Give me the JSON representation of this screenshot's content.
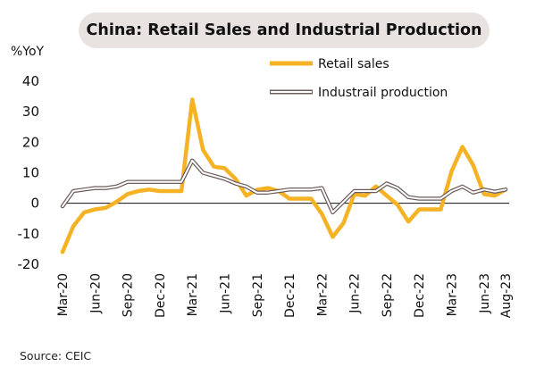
{
  "chart_data": {
    "type": "line",
    "title": "China: Retail Sales and Industrial Production",
    "ylabel": "%YoY",
    "xlabel": "",
    "ylim": [
      -20,
      40
    ],
    "yticks": [
      -20,
      -10,
      0,
      10,
      20,
      30,
      40
    ],
    "x": [
      "Mar-20",
      "Apr-20",
      "May-20",
      "Jun-20",
      "Jul-20",
      "Aug-20",
      "Sep-20",
      "Oct-20",
      "Nov-20",
      "Dec-20",
      "Jan-21",
      "Feb-21",
      "Mar-21",
      "Apr-21",
      "May-21",
      "Jun-21",
      "Jul-21",
      "Aug-21",
      "Sep-21",
      "Oct-21",
      "Nov-21",
      "Dec-21",
      "Jan-22",
      "Feb-22",
      "Mar-22",
      "Apr-22",
      "May-22",
      "Jun-22",
      "Jul-22",
      "Aug-22",
      "Sep-22",
      "Oct-22",
      "Nov-22",
      "Dec-22",
      "Jan-23",
      "Feb-23",
      "Mar-23",
      "Apr-23",
      "May-23",
      "Jun-23",
      "Jul-23",
      "Aug-23"
    ],
    "xtick_labels": [
      "Mar-20",
      "Jun-20",
      "Sep-20",
      "Dec-20",
      "Mar-21",
      "Jun-21",
      "Sep-21",
      "Dec-21",
      "Mar-22",
      "Jun-22",
      "Sep-22",
      "Dec-22",
      "Mar-23",
      "Jun-23",
      "Aug-23"
    ],
    "grid": false,
    "legend": "top-right",
    "series": [
      {
        "name": "Retail sales",
        "color": "#f4b224",
        "style": "solid",
        "values": [
          -16,
          -7.5,
          -3,
          -2,
          -1.5,
          0.5,
          3,
          4,
          4.5,
          4,
          4,
          4,
          34,
          17.5,
          12,
          11.5,
          8,
          2.5,
          4.4,
          5,
          4,
          1.5,
          1.5,
          1.5,
          -3.5,
          -11,
          -6.5,
          3,
          2.5,
          5.5,
          2.5,
          -0.5,
          -6,
          -2,
          -2,
          -2,
          10.5,
          18.5,
          12.5,
          3,
          2.5,
          4.5
        ]
      },
      {
        "name": "Industrail production",
        "color": "#6e5d5d",
        "style": "outlined",
        "values": [
          -1,
          4,
          4.5,
          5,
          5,
          5.5,
          7,
          7,
          7,
          7,
          7,
          7,
          14,
          10,
          9,
          8,
          6.5,
          5.5,
          3.5,
          3.5,
          4,
          4.5,
          4.5,
          4.5,
          5,
          -3,
          0.5,
          4,
          4,
          4,
          6.5,
          5,
          2,
          1.5,
          1.5,
          1.5,
          4,
          5.5,
          3.5,
          4.5,
          3.8,
          4.5
        ]
      }
    ],
    "source": "Source: CEIC"
  }
}
